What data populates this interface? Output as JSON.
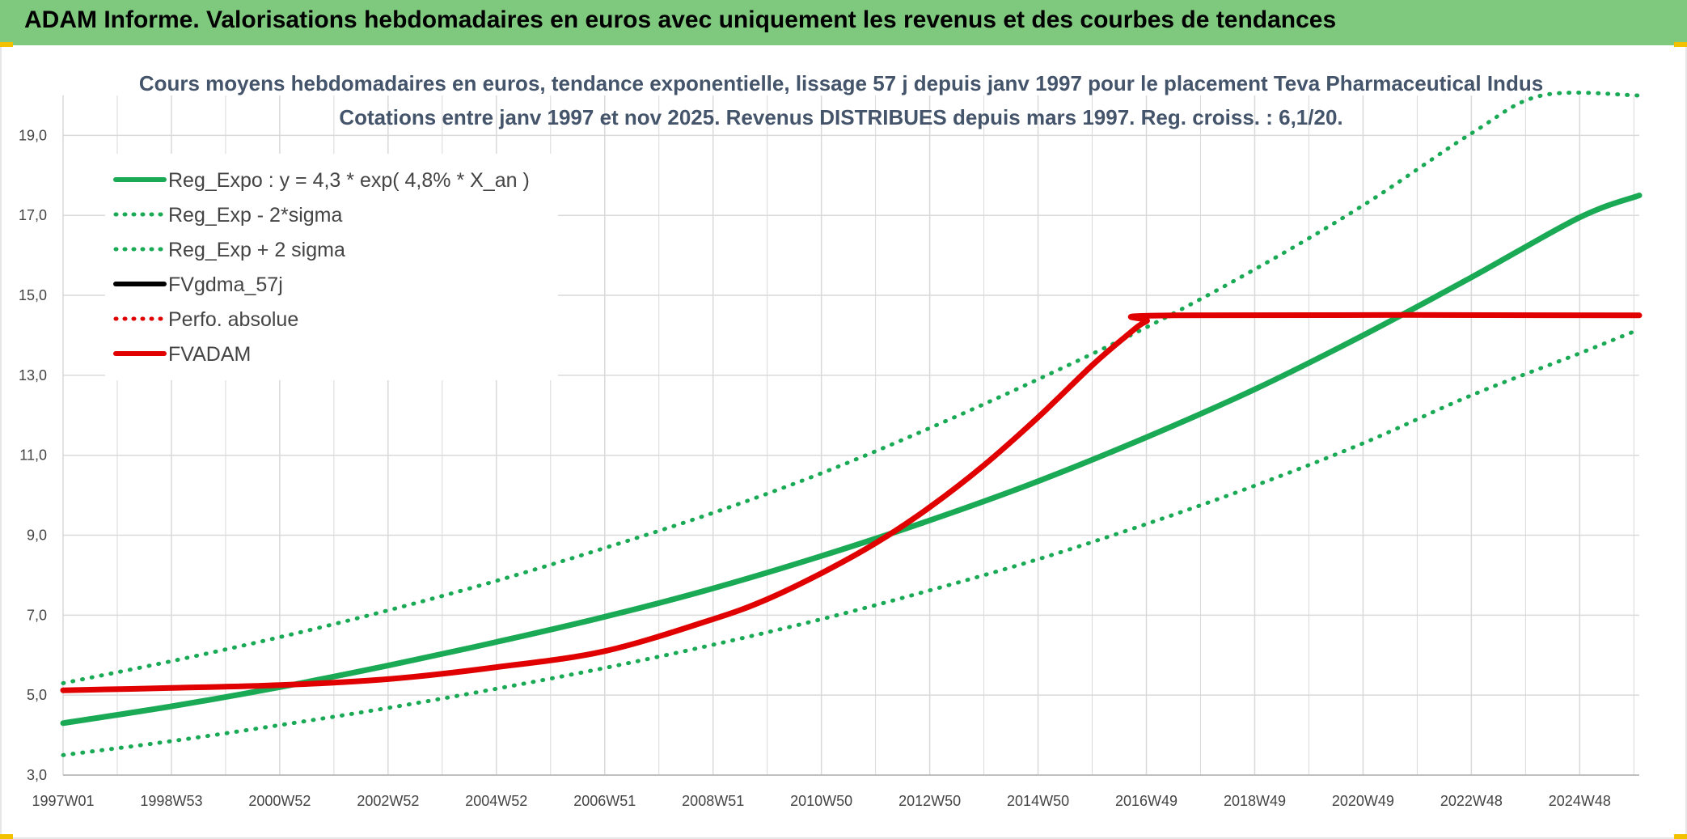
{
  "header": {
    "title": "ADAM Informe. Valorisations hebdomadaires en euros avec uniquement les revenus et des courbes de tendances"
  },
  "colors": {
    "green": "#1aaa55",
    "red": "#e00000",
    "black": "#000000",
    "grid": "#d9d9d9",
    "banner": "#7fc97f"
  },
  "chart_data": {
    "type": "line",
    "title": "Cours moyens hebdomadaires en euros, tendance exponentielle, lissage 57 j depuis janv 1997 pour le placement Teva Pharmaceutical Indus",
    "subtitle": "Cotations entre janv 1997 et nov 2025. Revenus DISTRIBUES depuis mars 1997. Reg. croiss. : 6,1/20.",
    "xlabel": "",
    "ylabel": "",
    "xlim": [
      1997.0,
      2026.1
    ],
    "ylim": [
      3.0,
      20.0
    ],
    "y_ticks": [
      3.0,
      5.0,
      7.0,
      9.0,
      11.0,
      13.0,
      15.0,
      17.0,
      19.0
    ],
    "y_tick_labels": [
      "3,0",
      "5,0",
      "7,0",
      "9,0",
      "11,0",
      "13,0",
      "15,0",
      "17,0",
      "19,0"
    ],
    "x_ticks": [
      1997.0,
      1999.0,
      2001.0,
      2003.0,
      2005.0,
      2007.0,
      2009.0,
      2011.0,
      2013.0,
      2015.0,
      2017.0,
      2019.0,
      2021.0,
      2023.0,
      2025.0
    ],
    "x_tick_labels": [
      "1997W01",
      "1998W53",
      "2000W52",
      "2002W52",
      "2004W52",
      "2006W51",
      "2008W51",
      "2010W50",
      "2012W50",
      "2014W50",
      "2016W49",
      "2018W49",
      "2020W49",
      "2022W48",
      "2024W48"
    ],
    "legend": [
      {
        "label": "Reg_Expo : y = 4,3 * exp( 4,8% *  X_an )",
        "color": "#1aaa55",
        "style": "solid"
      },
      {
        "label": "Reg_Exp - 2*sigma",
        "color": "#1aaa55",
        "style": "dotted"
      },
      {
        "label": "Reg_Exp + 2 sigma",
        "color": "#1aaa55",
        "style": "dotted"
      },
      {
        "label": "FVgdma_57j",
        "color": "#000000",
        "style": "solid"
      },
      {
        "label": "Perfo. absolue",
        "color": "#e00000",
        "style": "dotted"
      },
      {
        "label": "FVADAM",
        "color": "#e00000",
        "style": "solid"
      }
    ],
    "series": [
      {
        "name": "Reg_Expo",
        "x": [
          1997.0,
          1999.0,
          2001.0,
          2003.0,
          2005.0,
          2007.0,
          2009.0,
          2011.0,
          2013.0,
          2015.0,
          2017.0,
          2019.0,
          2021.0,
          2023.0,
          2025.0,
          2026.1
        ],
        "y": [
          4.3,
          4.72,
          5.2,
          5.74,
          6.33,
          6.96,
          7.67,
          8.48,
          9.37,
          10.35,
          11.45,
          12.65,
          14.0,
          15.45,
          16.95,
          17.5
        ]
      },
      {
        "name": "Reg_Exp - 2*sigma",
        "x": [
          1997.0,
          1999.0,
          2001.0,
          2003.0,
          2005.0,
          2007.0,
          2009.0,
          2011.0,
          2013.0,
          2015.0,
          2017.0,
          2019.0,
          2021.0,
          2023.0,
          2025.0,
          2026.1
        ],
        "y": [
          3.5,
          3.85,
          4.25,
          4.68,
          5.16,
          5.68,
          6.26,
          6.9,
          7.62,
          8.4,
          9.28,
          10.24,
          11.3,
          12.5,
          13.55,
          14.15
        ]
      },
      {
        "name": "Reg_Exp + 2 sigma",
        "x": [
          1997.0,
          1999.0,
          2001.0,
          2003.0,
          2005.0,
          2007.0,
          2009.0,
          2011.0,
          2013.0,
          2015.0,
          2017.0,
          2019.0,
          2021.0,
          2023.0,
          2024.3,
          2026.1
        ],
        "y": [
          5.3,
          5.85,
          6.45,
          7.12,
          7.86,
          8.68,
          9.56,
          10.55,
          11.68,
          12.9,
          14.2,
          15.65,
          17.25,
          19.05,
          20.0,
          20.0
        ]
      },
      {
        "name": "FVADAM",
        "x": [
          1997.0,
          1999.0,
          2001.0,
          2003.0,
          2005.0,
          2007.0,
          2009.0,
          2010.0,
          2011.0,
          2012.0,
          2013.0,
          2014.0,
          2015.0,
          2016.0,
          2016.6,
          2017.0,
          2017.5,
          2026.1
        ],
        "y": [
          5.12,
          5.18,
          5.25,
          5.4,
          5.7,
          6.1,
          6.9,
          7.4,
          8.05,
          8.8,
          9.7,
          10.75,
          11.95,
          13.25,
          13.95,
          14.35,
          14.5,
          14.5
        ]
      }
    ]
  }
}
